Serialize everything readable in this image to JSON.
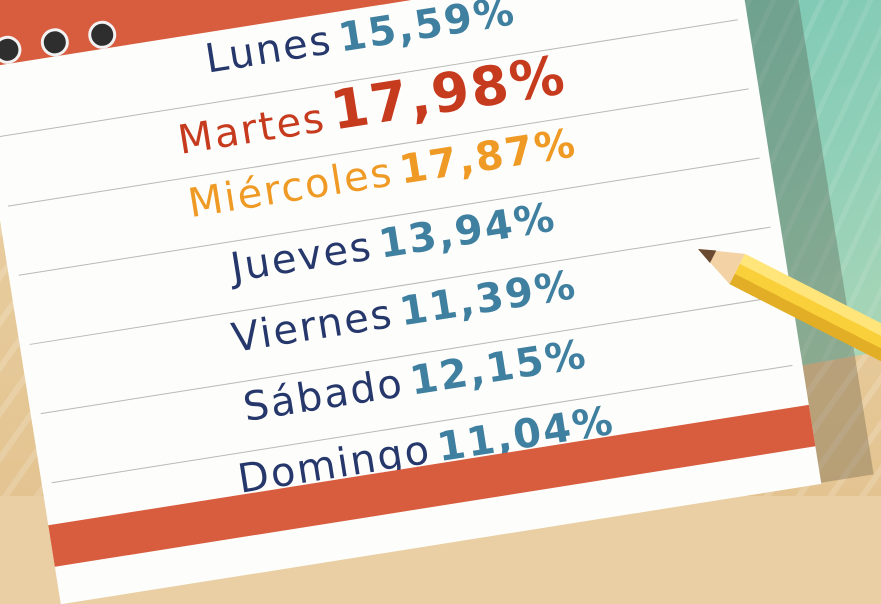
{
  "days": [
    {
      "day": "Lunes",
      "pct": "15,59%",
      "day_color": "#26386b",
      "pct_color": "#3f7f9f"
    },
    {
      "day": "Martes",
      "pct": "17,98%",
      "day_color": "#c63a1e",
      "pct_color": "#c63a1e"
    },
    {
      "day": "Miércoles",
      "pct": "17,87%",
      "day_color": "#ef9a24",
      "pct_color": "#ef9a24"
    },
    {
      "day": "Jueves",
      "pct": "13,94%",
      "day_color": "#26386b",
      "pct_color": "#3f7f9f"
    },
    {
      "day": "Viernes",
      "pct": "11,39%",
      "day_color": "#26386b",
      "pct_color": "#3f7f9f"
    },
    {
      "day": "Sábado",
      "pct": "12,15%",
      "day_color": "#26386b",
      "pct_color": "#3f7f9f"
    },
    {
      "day": "Domingo",
      "pct": "11,04%",
      "day_color": "#26386b",
      "pct_color": "#3f7f9f"
    }
  ],
  "colors": {
    "notepad_red": "#d85c3e",
    "paper": "#fdfdfb",
    "desk": "#e9cfa3",
    "teal": "#6cc2b0",
    "pencil_yellow": "#f9cf3a"
  },
  "icons": [
    "ring-binding-icon",
    "pencil-icon"
  ]
}
